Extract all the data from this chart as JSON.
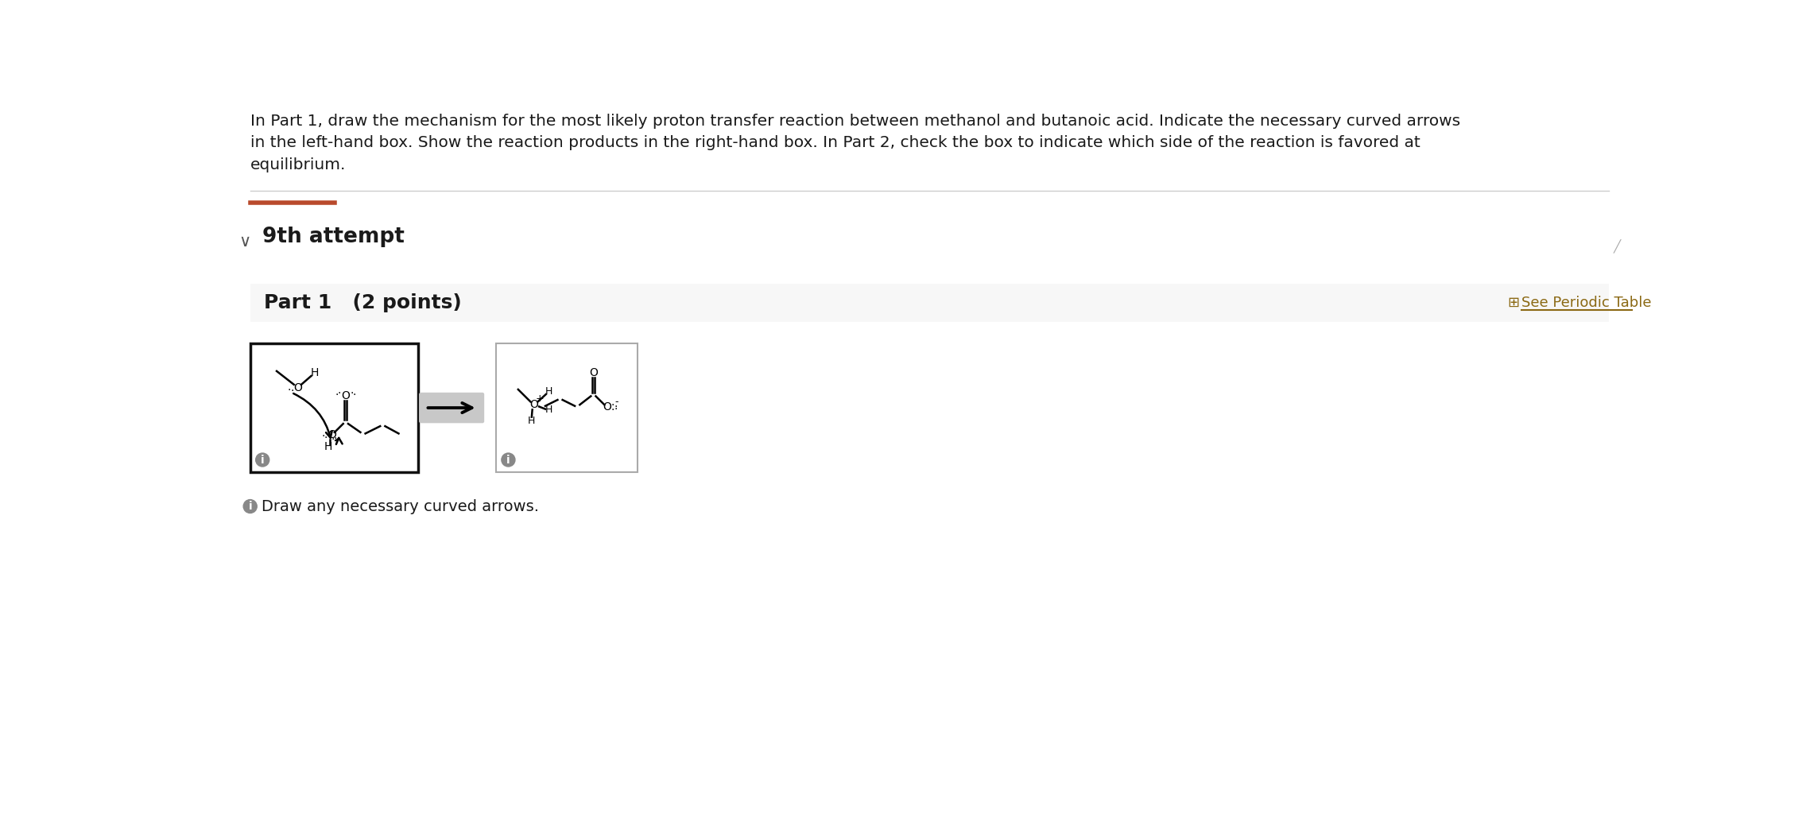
{
  "bg_color": "#ffffff",
  "text_color": "#1a1a1a",
  "header_text_line1": "In Part 1, draw the mechanism for the most likely proton transfer reaction between methanol and butanoic acid. Indicate the necessary curved arrows",
  "header_text_line2": "in the left-hand box. Show the reaction products in the right-hand box. In Part 2, check the box to indicate which side of the reaction is favored at",
  "header_text_line3": "equilibrium.",
  "header_fontsize": 14.5,
  "divider_color": "#b94a2c",
  "section_label": "9th attempt",
  "section_label_fontsize": 19,
  "part_label": "Part 1   (2 points)",
  "part_label_fontsize": 18,
  "periodic_table_text": "See Periodic Table",
  "periodic_table_color": "#8B6914",
  "part_bg_color": "#f7f7f7",
  "box1_color": "#111111",
  "box2_color": "#999999",
  "info_circle_color": "#888888",
  "note_text": "Draw any necessary curved arrows.",
  "note_fontsize": 14,
  "chevron_color": "#555555"
}
